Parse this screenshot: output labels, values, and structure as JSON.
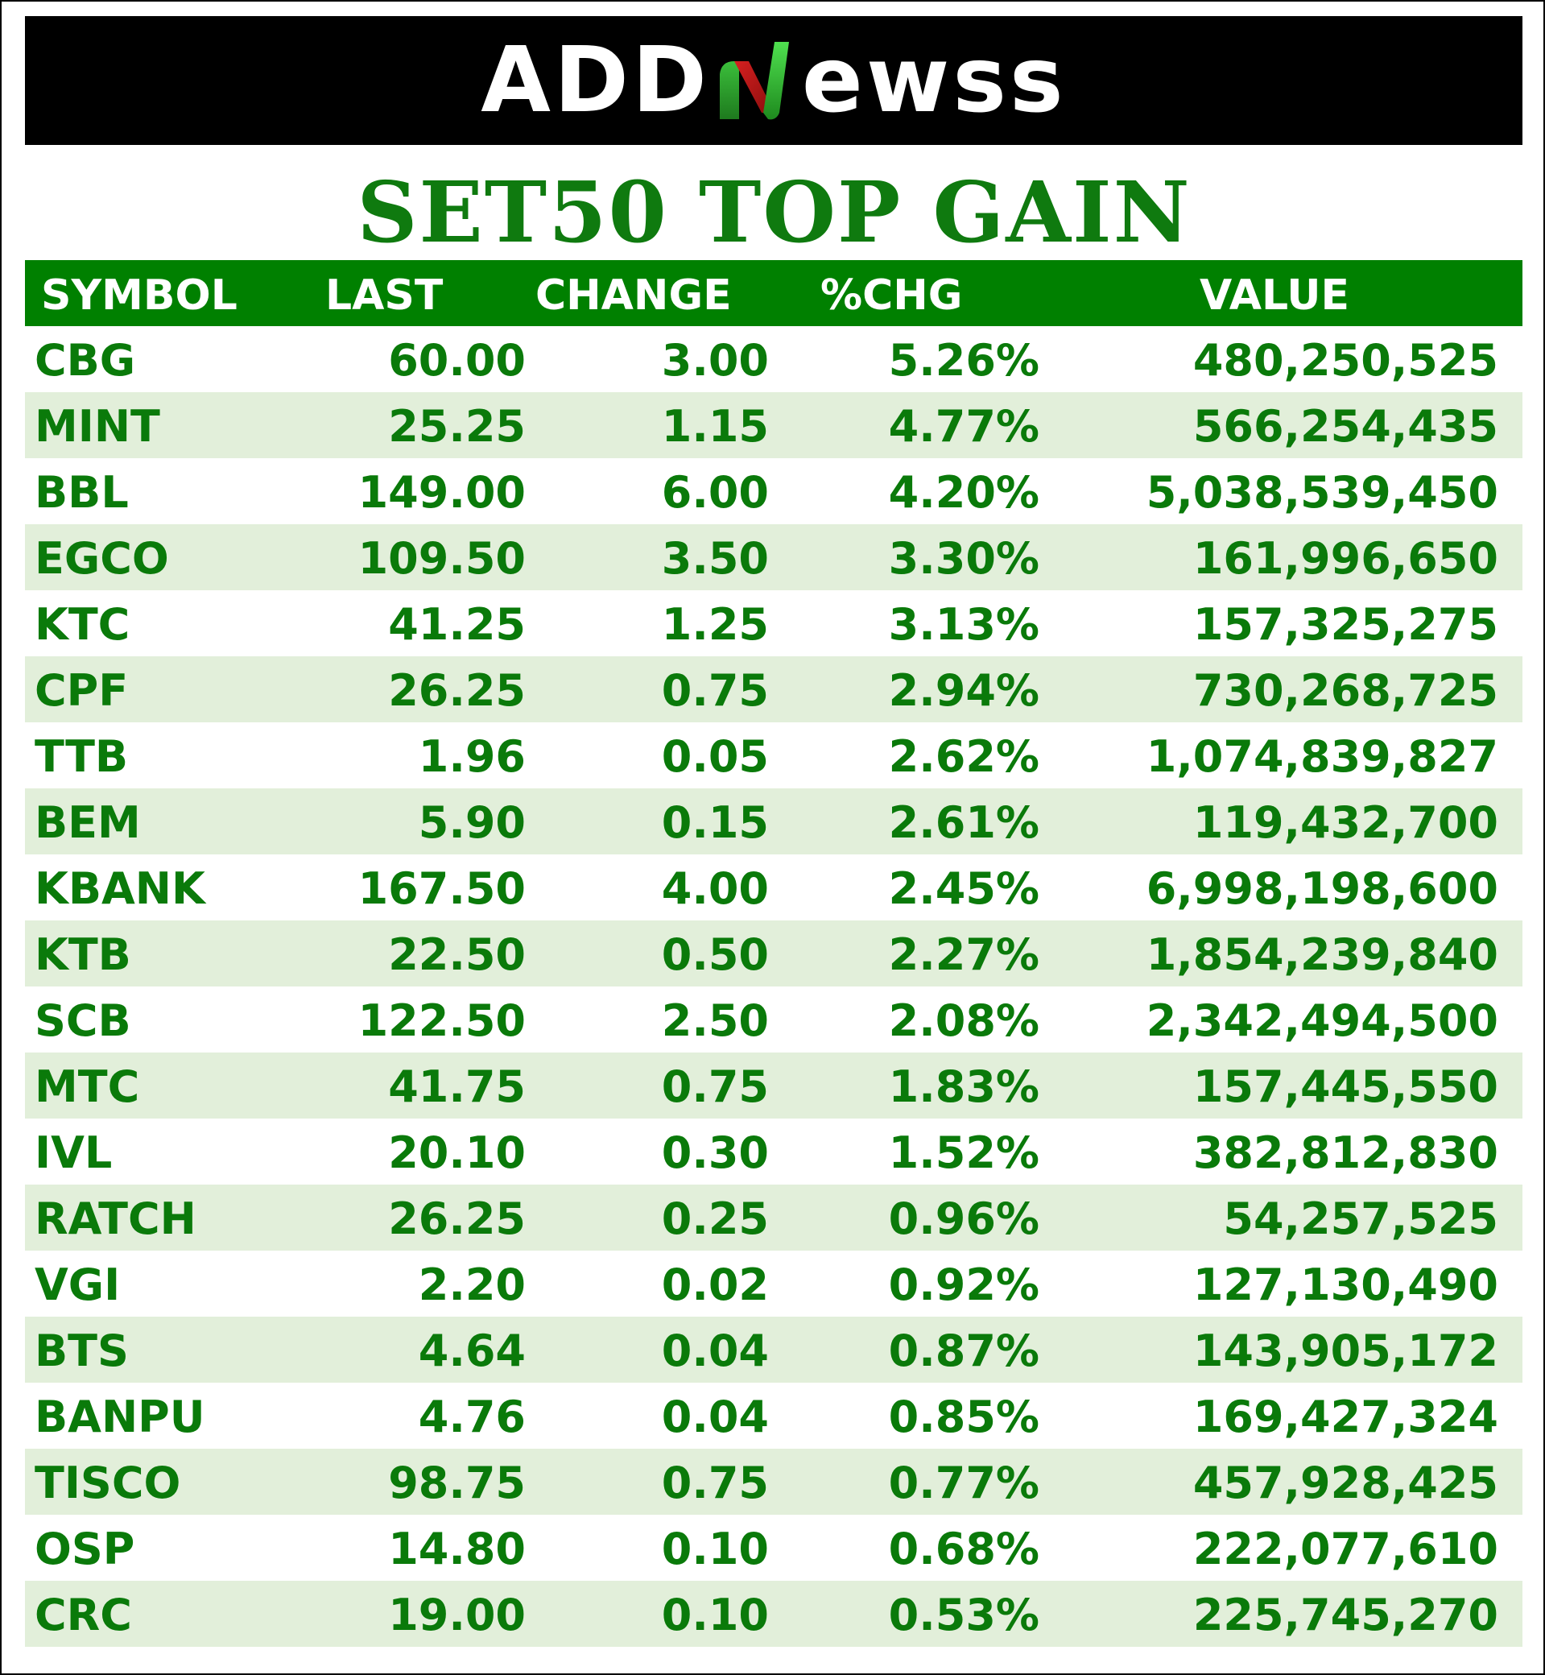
{
  "header": {
    "logo_text_left": "ADD",
    "logo_text_right": "ewss",
    "logo_icon": "n-chart-mark-icon",
    "background": "#000000"
  },
  "title": "SET50 TOP GAIN",
  "colors": {
    "header_bg": "#008000",
    "text_green": "#0a7a0a",
    "alt_row": "#e2efda"
  },
  "table": {
    "columns": [
      "SYMBOL",
      "LAST",
      "CHANGE",
      "%CHG",
      "VALUE"
    ],
    "rows": [
      {
        "symbol": "CBG",
        "last": "60.00",
        "change": "3.00",
        "pct": "5.26%",
        "value": "480,250,525"
      },
      {
        "symbol": "MINT",
        "last": "25.25",
        "change": "1.15",
        "pct": "4.77%",
        "value": "566,254,435"
      },
      {
        "symbol": "BBL",
        "last": "149.00",
        "change": "6.00",
        "pct": "4.20%",
        "value": "5,038,539,450"
      },
      {
        "symbol": "EGCO",
        "last": "109.50",
        "change": "3.50",
        "pct": "3.30%",
        "value": "161,996,650"
      },
      {
        "symbol": "KTC",
        "last": "41.25",
        "change": "1.25",
        "pct": "3.13%",
        "value": "157,325,275"
      },
      {
        "symbol": "CPF",
        "last": "26.25",
        "change": "0.75",
        "pct": "2.94%",
        "value": "730,268,725"
      },
      {
        "symbol": "TTB",
        "last": "1.96",
        "change": "0.05",
        "pct": "2.62%",
        "value": "1,074,839,827"
      },
      {
        "symbol": "BEM",
        "last": "5.90",
        "change": "0.15",
        "pct": "2.61%",
        "value": "119,432,700"
      },
      {
        "symbol": "KBANK",
        "last": "167.50",
        "change": "4.00",
        "pct": "2.45%",
        "value": "6,998,198,600"
      },
      {
        "symbol": "KTB",
        "last": "22.50",
        "change": "0.50",
        "pct": "2.27%",
        "value": "1,854,239,840"
      },
      {
        "symbol": "SCB",
        "last": "122.50",
        "change": "2.50",
        "pct": "2.08%",
        "value": "2,342,494,500"
      },
      {
        "symbol": "MTC",
        "last": "41.75",
        "change": "0.75",
        "pct": "1.83%",
        "value": "157,445,550"
      },
      {
        "symbol": "IVL",
        "last": "20.10",
        "change": "0.30",
        "pct": "1.52%",
        "value": "382,812,830"
      },
      {
        "symbol": "RATCH",
        "last": "26.25",
        "change": "0.25",
        "pct": "0.96%",
        "value": "54,257,525"
      },
      {
        "symbol": "VGI",
        "last": "2.20",
        "change": "0.02",
        "pct": "0.92%",
        "value": "127,130,490"
      },
      {
        "symbol": "BTS",
        "last": "4.64",
        "change": "0.04",
        "pct": "0.87%",
        "value": "143,905,172"
      },
      {
        "symbol": "BANPU",
        "last": "4.76",
        "change": "0.04",
        "pct": "0.85%",
        "value": "169,427,324"
      },
      {
        "symbol": "TISCO",
        "last": "98.75",
        "change": "0.75",
        "pct": "0.77%",
        "value": "457,928,425"
      },
      {
        "symbol": "OSP",
        "last": "14.80",
        "change": "0.10",
        "pct": "0.68%",
        "value": "222,077,610"
      },
      {
        "symbol": "CRC",
        "last": "19.00",
        "change": "0.10",
        "pct": "0.53%",
        "value": "225,745,270"
      }
    ]
  }
}
